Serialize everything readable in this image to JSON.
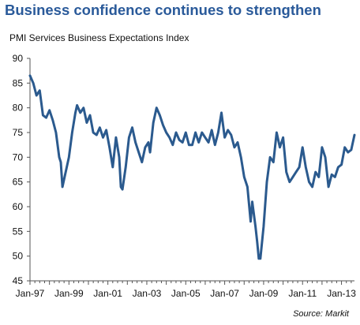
{
  "chart_data": {
    "type": "line",
    "title": "Business confidence continues to strengthen",
    "ylabel": "PMI Services Business Expectations Index",
    "source": "Source: Markit",
    "ylim": [
      45,
      90
    ],
    "yticks": [
      45,
      50,
      55,
      60,
      65,
      70,
      75,
      80,
      85,
      90
    ],
    "xlim": [
      "1997-01",
      "2013-09"
    ],
    "xticks": [
      {
        "label": "Jan-97",
        "date": "1997-01"
      },
      {
        "label": "Jan-99",
        "date": "1999-01"
      },
      {
        "label": "Jan-01",
        "date": "2001-01"
      },
      {
        "label": "Jan-03",
        "date": "2003-01"
      },
      {
        "label": "Jan-05",
        "date": "2005-01"
      },
      {
        "label": "Jan-07",
        "date": "2007-01"
      },
      {
        "label": "Jan-09",
        "date": "2009-01"
      },
      {
        "label": "Jan-11",
        "date": "2011-01"
      },
      {
        "label": "Jan-13",
        "date": "2013-01"
      }
    ],
    "grid": false,
    "line_color": "#2b5a8e",
    "series": [
      {
        "points": [
          [
            "1997-01",
            86.5
          ],
          [
            "1997-03",
            85.0
          ],
          [
            "1997-05",
            82.5
          ],
          [
            "1997-07",
            83.5
          ],
          [
            "1997-09",
            78.5
          ],
          [
            "1997-11",
            78.0
          ],
          [
            "1998-01",
            79.5
          ],
          [
            "1998-03",
            77.5
          ],
          [
            "1998-05",
            75.0
          ],
          [
            "1998-07",
            70.0
          ],
          [
            "1998-08",
            69.0
          ],
          [
            "1998-09",
            64.0
          ],
          [
            "1998-11",
            67.0
          ],
          [
            "1999-01",
            70.0
          ],
          [
            "1999-03",
            75.0
          ],
          [
            "1999-05",
            79.0
          ],
          [
            "1999-06",
            80.5
          ],
          [
            "1999-08",
            79.0
          ],
          [
            "1999-10",
            80.0
          ],
          [
            "1999-12",
            77.0
          ],
          [
            "2000-02",
            78.5
          ],
          [
            "2000-04",
            75.0
          ],
          [
            "2000-06",
            74.5
          ],
          [
            "2000-08",
            76.0
          ],
          [
            "2000-10",
            74.0
          ],
          [
            "2000-12",
            75.5
          ],
          [
            "2001-02",
            72.0
          ],
          [
            "2001-04",
            68.0
          ],
          [
            "2001-06",
            74.0
          ],
          [
            "2001-08",
            70.0
          ],
          [
            "2001-09",
            64.0
          ],
          [
            "2001-10",
            63.5
          ],
          [
            "2001-12",
            68.0
          ],
          [
            "2002-02",
            74.0
          ],
          [
            "2002-04",
            76.0
          ],
          [
            "2002-06",
            73.0
          ],
          [
            "2002-08",
            71.0
          ],
          [
            "2002-10",
            69.0
          ],
          [
            "2002-12",
            72.0
          ],
          [
            "2003-02",
            73.0
          ],
          [
            "2003-03",
            71.0
          ],
          [
            "2003-05",
            77.0
          ],
          [
            "2003-07",
            80.0
          ],
          [
            "2003-09",
            78.5
          ],
          [
            "2003-11",
            76.5
          ],
          [
            "2004-01",
            75.0
          ],
          [
            "2004-03",
            74.0
          ],
          [
            "2004-05",
            72.5
          ],
          [
            "2004-07",
            75.0
          ],
          [
            "2004-09",
            73.5
          ],
          [
            "2004-11",
            73.0
          ],
          [
            "2005-01",
            75.0
          ],
          [
            "2005-03",
            72.5
          ],
          [
            "2005-05",
            72.5
          ],
          [
            "2005-07",
            75.0
          ],
          [
            "2005-09",
            73.0
          ],
          [
            "2005-11",
            75.0
          ],
          [
            "2006-01",
            74.0
          ],
          [
            "2006-03",
            73.0
          ],
          [
            "2006-05",
            75.5
          ],
          [
            "2006-07",
            72.5
          ],
          [
            "2006-09",
            75.0
          ],
          [
            "2006-11",
            79.0
          ],
          [
            "2007-01",
            74.0
          ],
          [
            "2007-03",
            75.5
          ],
          [
            "2007-05",
            74.5
          ],
          [
            "2007-07",
            72.0
          ],
          [
            "2007-09",
            73.0
          ],
          [
            "2007-11",
            70.0
          ],
          [
            "2008-01",
            66.0
          ],
          [
            "2008-03",
            64.0
          ],
          [
            "2008-05",
            57.0
          ],
          [
            "2008-06",
            61.0
          ],
          [
            "2008-08",
            56.0
          ],
          [
            "2008-09",
            53.0
          ],
          [
            "2008-10",
            49.5
          ],
          [
            "2008-11",
            49.5
          ],
          [
            "2009-01",
            56.0
          ],
          [
            "2009-03",
            65.0
          ],
          [
            "2009-05",
            70.0
          ],
          [
            "2009-07",
            69.0
          ],
          [
            "2009-09",
            75.0
          ],
          [
            "2009-11",
            72.0
          ],
          [
            "2010-01",
            74.0
          ],
          [
            "2010-03",
            67.0
          ],
          [
            "2010-05",
            65.0
          ],
          [
            "2010-07",
            66.0
          ],
          [
            "2010-09",
            67.0
          ],
          [
            "2010-11",
            68.0
          ],
          [
            "2011-01",
            72.0
          ],
          [
            "2011-03",
            68.0
          ],
          [
            "2011-05",
            65.0
          ],
          [
            "2011-07",
            64.0
          ],
          [
            "2011-09",
            67.0
          ],
          [
            "2011-11",
            66.0
          ],
          [
            "2012-01",
            72.0
          ],
          [
            "2012-03",
            70.0
          ],
          [
            "2012-05",
            64.0
          ],
          [
            "2012-07",
            66.5
          ],
          [
            "2012-09",
            66.0
          ],
          [
            "2012-11",
            68.0
          ],
          [
            "2013-01",
            68.5
          ],
          [
            "2013-03",
            72.0
          ],
          [
            "2013-05",
            71.0
          ],
          [
            "2013-07",
            71.5
          ],
          [
            "2013-09",
            74.5
          ]
        ]
      }
    ]
  }
}
